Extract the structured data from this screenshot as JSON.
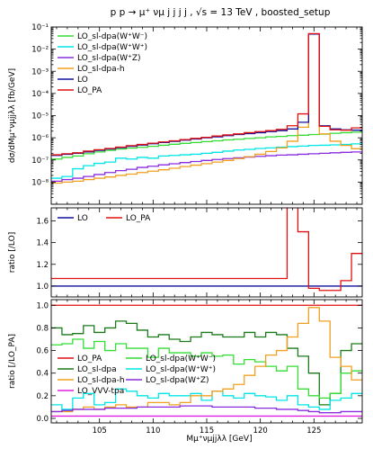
{
  "figure": {
    "title": "p p → μ⁺ νμ j j j j ,   √s = 13 TeV ,   boosted_setup",
    "xlabel": "Mμ⁺νμjjλλ [GeV]"
  },
  "chart_data": [
    {
      "type": "line",
      "panel": "top",
      "ylabel": "dσ/dMμ⁺νμjjλλ [fb/GeV]",
      "yscale": "log",
      "ylim": [
        1e-09,
        0.1
      ],
      "xlim": [
        100.5,
        129.5
      ],
      "xticks": [
        105,
        110,
        115,
        120,
        125
      ],
      "ytick_labels": [
        "10⁻⁸",
        "10⁻⁷",
        "10⁻⁶",
        "10⁻⁵",
        "10⁻⁴",
        "10⁻³",
        "10⁻²",
        "10⁻¹"
      ],
      "x_edges": [
        100.5,
        101.5,
        102.5,
        103.5,
        104.5,
        105.5,
        106.5,
        107.5,
        108.5,
        109.5,
        110.5,
        111.5,
        112.5,
        113.5,
        114.5,
        115.5,
        116.5,
        117.5,
        118.5,
        119.5,
        120.5,
        121.5,
        122.5,
        123.5,
        124.5,
        125.5,
        126.5,
        127.5,
        128.5,
        129.5
      ],
      "legend": [
        "LO_sl-dpa(W⁺W⁻)",
        "LO_sl-dpa(W⁺W⁺)",
        "LO_sl-dpa(W⁺Z)",
        "LO_sl-dpa-h",
        "LO",
        "LO_PA"
      ],
      "series": [
        {
          "name": "LO_sl-dpa(W⁺W⁻)",
          "color": "#33dd33",
          "values": [
            1.1e-07,
            1.3e-07,
            1.5e-07,
            1.9e-07,
            2.3e-07,
            2.7e-07,
            3.1e-07,
            3.4e-07,
            3.7e-07,
            4.1e-07,
            4.6e-07,
            5.1e-07,
            5.6e-07,
            6.1e-07,
            6.7e-07,
            7.3e-07,
            8e-07,
            8.6e-07,
            9.3e-07,
            1e-06,
            1.1e-06,
            1.15e-06,
            1.25e-06,
            1.3e-06,
            1.4e-06,
            1.45e-06,
            1.6e-06,
            1.7e-06,
            1.8e-06
          ]
        },
        {
          "name": "LO_sl-dpa(W⁺W⁺)",
          "color": "#00e5e5",
          "values": [
            1.5e-08,
            1.8e-08,
            4e-08,
            5.5e-08,
            7e-08,
            8e-08,
            1.2e-07,
            1.1e-07,
            1.3e-07,
            1.2e-07,
            1.5e-07,
            1.6e-07,
            1.7e-07,
            1.8e-07,
            2e-07,
            2.2e-07,
            2.5e-07,
            2.8e-07,
            3e-07,
            3.3e-07,
            3.5e-07,
            3.8e-07,
            4e-07,
            4.2e-07,
            4.5e-07,
            4.6e-07,
            4.8e-07,
            5e-07,
            5.3e-07
          ]
        },
        {
          "name": "LO_sl-dpa(W⁺Z)",
          "color": "#8a2be2",
          "values": [
            1.1e-08,
            1.3e-08,
            1.5e-08,
            1.8e-08,
            2.2e-08,
            2.7e-08,
            3.3e-08,
            3.8e-08,
            4.6e-08,
            5.2e-08,
            6e-08,
            6.7e-08,
            7.6e-08,
            8.5e-08,
            9.5e-08,
            1.05e-07,
            1.15e-07,
            1.25e-07,
            1.35e-07,
            1.45e-07,
            1.55e-07,
            1.65e-07,
            1.7e-07,
            1.8e-07,
            1.9e-07,
            2e-07,
            2.1e-07,
            2.2e-07,
            2.3e-07
          ]
        },
        {
          "name": "LO_sl-dpa-h",
          "color": "#f0a020",
          "values": [
            9e-09,
            1e-08,
            1.1e-08,
            1.3e-08,
            1.5e-08,
            1.7e-08,
            2e-08,
            2.3e-08,
            2.7e-08,
            3.1e-08,
            3.6e-08,
            4.2e-08,
            5e-08,
            5.8e-08,
            6.8e-08,
            8e-08,
            9.5e-08,
            1.15e-07,
            1.4e-07,
            1.8e-07,
            2.4e-07,
            3.5e-07,
            7e-07,
            3e-06,
            0.048,
            1.5e-06,
            7e-07,
            4.5e-07,
            3.2e-07
          ]
        },
        {
          "name": "LO",
          "color": "#1010a0",
          "values": [
            1.6e-07,
            1.8e-07,
            2e-07,
            2.3e-07,
            2.7e-07,
            3.1e-07,
            3.6e-07,
            4.1e-07,
            4.7e-07,
            5.4e-07,
            6.1e-07,
            6.9e-07,
            7.8e-07,
            8.8e-07,
            1e-06,
            1.1e-06,
            1.25e-06,
            1.4e-06,
            1.55e-06,
            1.7e-06,
            1.9e-06,
            2.1e-06,
            2.5e-06,
            5e-06,
            0.048,
            3.5e-06,
            2.5e-06,
            2.3e-06,
            2.2e-06
          ]
        },
        {
          "name": "LO_PA",
          "color": "#e01010",
          "values": [
            1.7e-07,
            1.9e-07,
            2.1e-07,
            2.5e-07,
            2.9e-07,
            3.3e-07,
            3.8e-07,
            4.4e-07,
            5e-07,
            5.7e-07,
            6.5e-07,
            7.3e-07,
            8.3e-07,
            9.4e-07,
            1.05e-06,
            1.2e-06,
            1.35e-06,
            1.5e-06,
            1.7e-06,
            1.9e-06,
            2.1e-06,
            2.4e-06,
            3.5e-06,
            1.2e-05,
            0.05,
            3.3e-06,
            2.3e-06,
            2.2e-06,
            2.8e-06
          ]
        }
      ]
    },
    {
      "type": "line",
      "panel": "middle",
      "ylabel": "ratio [/LO]",
      "ylim": [
        0.9,
        1.72
      ],
      "xlim": [
        100.5,
        129.5
      ],
      "yticks": [
        1.0,
        1.2,
        1.4,
        1.6
      ],
      "ytick_labels": [
        "1.0",
        "1.2",
        "1.4",
        "1.6"
      ],
      "x_edges": [
        100.5,
        101.5,
        102.5,
        103.5,
        104.5,
        105.5,
        106.5,
        107.5,
        108.5,
        109.5,
        110.5,
        111.5,
        112.5,
        113.5,
        114.5,
        115.5,
        116.5,
        117.5,
        118.5,
        119.5,
        120.5,
        121.5,
        122.5,
        123.5,
        124.5,
        125.5,
        126.5,
        127.5,
        128.5,
        129.5
      ],
      "legend": [
        "LO",
        "LO_PA"
      ],
      "series": [
        {
          "name": "LO",
          "color": "#1010a0",
          "values": [
            1,
            1,
            1,
            1,
            1,
            1,
            1,
            1,
            1,
            1,
            1,
            1,
            1,
            1,
            1,
            1,
            1,
            1,
            1,
            1,
            1,
            1,
            1,
            1,
            1,
            1,
            1,
            1,
            1
          ]
        },
        {
          "name": "LO_PA",
          "color": "#e01010",
          "values": [
            1.07,
            1.07,
            1.07,
            1.07,
            1.07,
            1.07,
            1.07,
            1.07,
            1.07,
            1.07,
            1.07,
            1.07,
            1.07,
            1.07,
            1.07,
            1.07,
            1.07,
            1.07,
            1.07,
            1.07,
            1.07,
            1.07,
            1.75,
            1.5,
            0.98,
            0.96,
            0.96,
            1.05,
            1.3
          ]
        }
      ]
    },
    {
      "type": "line",
      "panel": "bottom",
      "ylabel": "ratio [/LO_PA]",
      "ylim": [
        -0.04,
        1.05
      ],
      "xlim": [
        100.5,
        129.5
      ],
      "yticks": [
        0.0,
        0.2,
        0.4,
        0.6,
        0.8,
        1.0
      ],
      "ytick_labels": [
        "0.0",
        "0.2",
        "0.4",
        "0.6",
        "0.8",
        "1.0"
      ],
      "x_edges": [
        100.5,
        101.5,
        102.5,
        103.5,
        104.5,
        105.5,
        106.5,
        107.5,
        108.5,
        109.5,
        110.5,
        111.5,
        112.5,
        113.5,
        114.5,
        115.5,
        116.5,
        117.5,
        118.5,
        119.5,
        120.5,
        121.5,
        122.5,
        123.5,
        124.5,
        125.5,
        126.5,
        127.5,
        128.5,
        129.5
      ],
      "legend": [
        "LO_PA",
        "LO_sl-dpa(W⁺W⁻)",
        "LO_sl-dpa",
        "LO_sl-dpa(W⁺W⁺)",
        "LO_sl-dpa-h",
        "LO_sl-dpa(W⁺Z)",
        "LO_VVV-tpa"
      ],
      "series": [
        {
          "name": "LO_PA",
          "color": "#e01010",
          "values": [
            1,
            1,
            1,
            1,
            1,
            1,
            1,
            1,
            1,
            1,
            1,
            1,
            1,
            1,
            1,
            1,
            1,
            1,
            1,
            1,
            1,
            1,
            1,
            1,
            1,
            1,
            1,
            1,
            1
          ]
        },
        {
          "name": "LO_sl-dpa",
          "color": "#1a7a1a",
          "values": [
            0.8,
            0.74,
            0.75,
            0.82,
            0.76,
            0.8,
            0.86,
            0.84,
            0.78,
            0.72,
            0.74,
            0.7,
            0.68,
            0.72,
            0.76,
            0.74,
            0.72,
            0.72,
            0.76,
            0.72,
            0.76,
            0.74,
            0.62,
            0.55,
            0.4,
            0.12,
            0.22,
            0.6,
            0.66
          ]
        },
        {
          "name": "LO_sl-dpa(W⁺W⁻)",
          "color": "#33dd33",
          "values": [
            0.65,
            0.66,
            0.7,
            0.62,
            0.68,
            0.6,
            0.66,
            0.62,
            0.62,
            0.54,
            0.62,
            0.58,
            0.58,
            0.55,
            0.58,
            0.55,
            0.56,
            0.48,
            0.52,
            0.5,
            0.46,
            0.42,
            0.46,
            0.26,
            0.2,
            0.18,
            0.22,
            0.4,
            0.42
          ]
        },
        {
          "name": "LO_sl-dpa(W⁺W⁺)",
          "color": "#00e5e5",
          "values": [
            0.12,
            0.08,
            0.18,
            0.22,
            0.12,
            0.14,
            0.26,
            0.24,
            0.2,
            0.18,
            0.22,
            0.2,
            0.2,
            0.22,
            0.16,
            0.24,
            0.2,
            0.18,
            0.22,
            0.2,
            0.19,
            0.16,
            0.2,
            0.12,
            0.1,
            0.08,
            0.16,
            0.18,
            0.22
          ]
        },
        {
          "name": "LO_sl-dpa-h",
          "color": "#f0a020",
          "values": [
            0.06,
            0.06,
            0.08,
            0.1,
            0.08,
            0.1,
            0.12,
            0.1,
            0.1,
            0.14,
            0.14,
            0.12,
            0.14,
            0.2,
            0.2,
            0.24,
            0.26,
            0.3,
            0.38,
            0.46,
            0.56,
            0.6,
            0.72,
            0.84,
            0.98,
            0.86,
            0.54,
            0.46,
            0.34
          ]
        },
        {
          "name": "LO_sl-dpa(W⁺Z)",
          "color": "#8a2be2",
          "values": [
            0.06,
            0.07,
            0.08,
            0.08,
            0.08,
            0.09,
            0.09,
            0.09,
            0.1,
            0.1,
            0.1,
            0.1,
            0.11,
            0.11,
            0.11,
            0.1,
            0.1,
            0.1,
            0.1,
            0.09,
            0.09,
            0.08,
            0.08,
            0.07,
            0.06,
            0.05,
            0.05,
            0.06,
            0.06
          ]
        },
        {
          "name": "LO_VVV-tpa",
          "color": "#e020e0",
          "values": [
            0.02,
            0.02,
            0.02,
            0.02,
            0.02,
            0.02,
            0.02,
            0.02,
            0.02,
            0.02,
            0.02,
            0.02,
            0.02,
            0.02,
            0.02,
            0.02,
            0.02,
            0.02,
            0.02,
            0.02,
            0.02,
            0.02,
            0.02,
            0.02,
            0.02,
            0.02,
            0.02,
            0.02,
            0.02
          ]
        }
      ]
    }
  ]
}
